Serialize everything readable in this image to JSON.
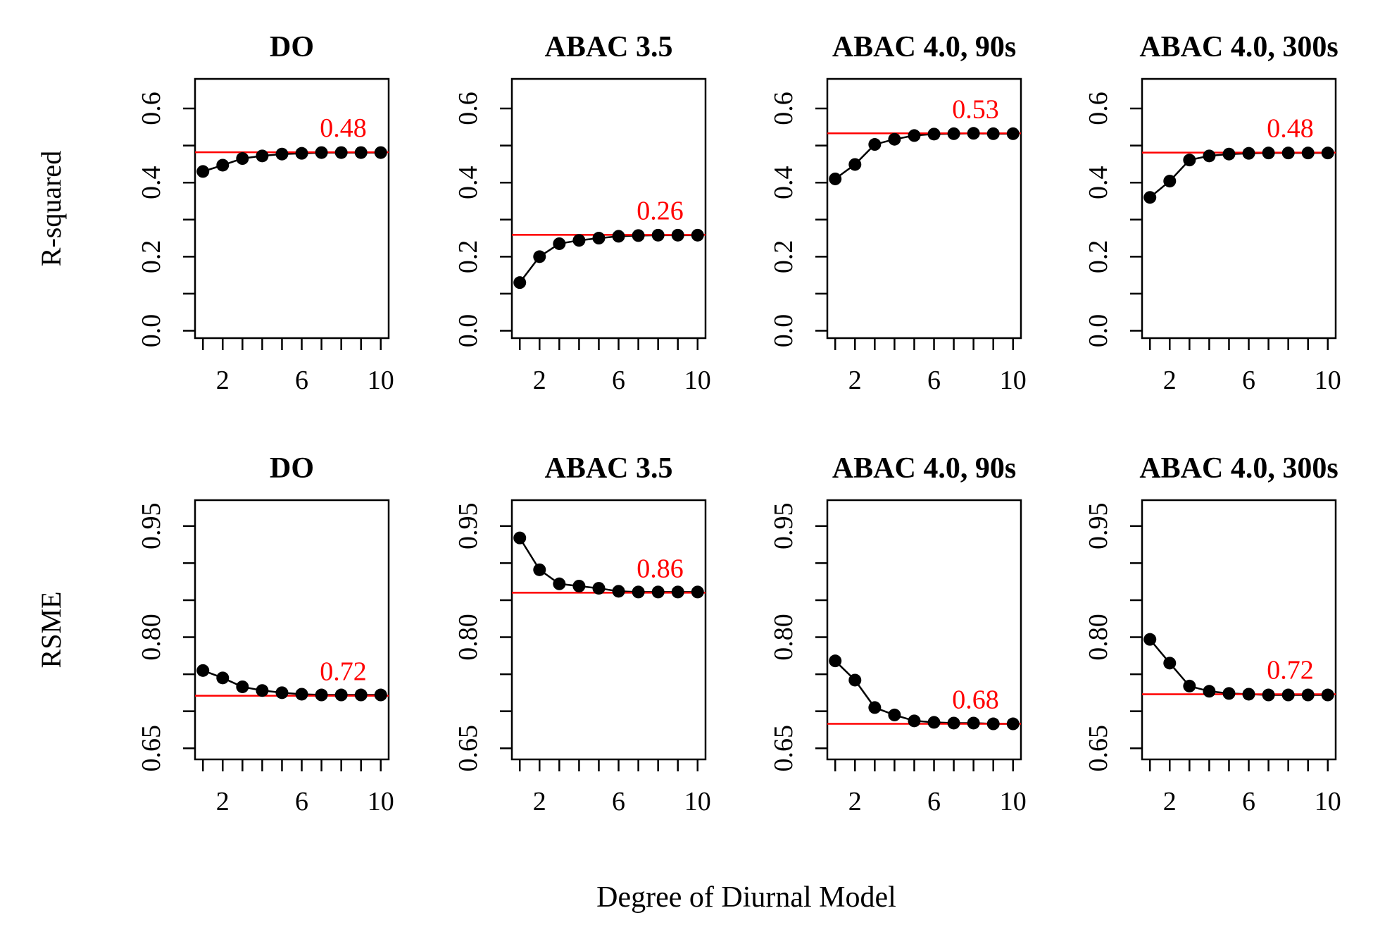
{
  "xlabel": "Degree of Diurnal Model",
  "row_labels": [
    "R-squared",
    "RSME"
  ],
  "colors": {
    "series": "#000000",
    "reference": "#ff0000"
  },
  "chart_data": [
    {
      "type": "line",
      "title": "DO",
      "ylabel": "R-squared",
      "xlim": [
        0.6,
        10.4
      ],
      "xticks": [
        2,
        6,
        10
      ],
      "ylim": [
        -0.02,
        0.68
      ],
      "yticks": [
        0.0,
        0.1,
        0.2,
        0.3,
        0.4,
        0.5,
        0.6
      ],
      "ytick_labels": [
        "0.0",
        "",
        "0.2",
        "",
        "0.4",
        "",
        "0.6"
      ],
      "x": [
        1,
        2,
        3,
        4,
        5,
        6,
        7,
        8,
        9,
        10
      ],
      "y": [
        0.43,
        0.447,
        0.465,
        0.472,
        0.477,
        0.479,
        0.481,
        0.481,
        0.481,
        0.481
      ],
      "reference": 0.482,
      "reference_label": "0.48",
      "label_pos": "above"
    },
    {
      "type": "line",
      "title": "ABAC 3.5",
      "ylabel": "R-squared",
      "xlim": [
        0.6,
        10.4
      ],
      "xticks": [
        2,
        6,
        10
      ],
      "ylim": [
        -0.02,
        0.68
      ],
      "yticks": [
        0.0,
        0.1,
        0.2,
        0.3,
        0.4,
        0.5,
        0.6
      ],
      "ytick_labels": [
        "0.0",
        "",
        "0.2",
        "",
        "0.4",
        "",
        "0.6"
      ],
      "x": [
        1,
        2,
        3,
        4,
        5,
        6,
        7,
        8,
        9,
        10
      ],
      "y": [
        0.13,
        0.2,
        0.235,
        0.244,
        0.25,
        0.255,
        0.257,
        0.258,
        0.258,
        0.258
      ],
      "reference": 0.259,
      "reference_label": "0.26",
      "label_pos": "above"
    },
    {
      "type": "line",
      "title": "ABAC 4.0, 90s",
      "ylabel": "R-squared",
      "xlim": [
        0.6,
        10.4
      ],
      "xticks": [
        2,
        6,
        10
      ],
      "ylim": [
        -0.02,
        0.68
      ],
      "yticks": [
        0.0,
        0.1,
        0.2,
        0.3,
        0.4,
        0.5,
        0.6
      ],
      "ytick_labels": [
        "0.0",
        "",
        "0.2",
        "",
        "0.4",
        "",
        "0.6"
      ],
      "x": [
        1,
        2,
        3,
        4,
        5,
        6,
        7,
        8,
        9,
        10
      ],
      "y": [
        0.41,
        0.449,
        0.503,
        0.517,
        0.527,
        0.531,
        0.532,
        0.533,
        0.532,
        0.532
      ],
      "reference": 0.533,
      "reference_label": "0.53",
      "label_pos": "above"
    },
    {
      "type": "line",
      "title": "ABAC 4.0, 300s",
      "ylabel": "R-squared",
      "xlim": [
        0.6,
        10.4
      ],
      "xticks": [
        2,
        6,
        10
      ],
      "ylim": [
        -0.02,
        0.68
      ],
      "yticks": [
        0.0,
        0.1,
        0.2,
        0.3,
        0.4,
        0.5,
        0.6
      ],
      "ytick_labels": [
        "0.0",
        "",
        "0.2",
        "",
        "0.4",
        "",
        "0.6"
      ],
      "x": [
        1,
        2,
        3,
        4,
        5,
        6,
        7,
        8,
        9,
        10
      ],
      "y": [
        0.36,
        0.404,
        0.461,
        0.472,
        0.477,
        0.479,
        0.48,
        0.48,
        0.48,
        0.48
      ],
      "reference": 0.481,
      "reference_label": "0.48",
      "label_pos": "above"
    },
    {
      "type": "line",
      "title": "DO",
      "ylabel": "RSME",
      "xlim": [
        0.6,
        10.4
      ],
      "xticks": [
        2,
        6,
        10
      ],
      "ylim": [
        0.635,
        0.985
      ],
      "yticks": [
        0.65,
        0.7,
        0.75,
        0.8,
        0.85,
        0.9,
        0.95
      ],
      "ytick_labels": [
        "0.65",
        "",
        "",
        "0.80",
        "",
        "",
        "0.95"
      ],
      "x": [
        1,
        2,
        3,
        4,
        5,
        6,
        7,
        8,
        9,
        10
      ],
      "y": [
        0.755,
        0.745,
        0.733,
        0.728,
        0.725,
        0.723,
        0.722,
        0.722,
        0.722,
        0.722
      ],
      "reference": 0.721,
      "reference_label": "0.72",
      "label_pos": "above"
    },
    {
      "type": "line",
      "title": "ABAC 3.5",
      "ylabel": "RSME",
      "xlim": [
        0.6,
        10.4
      ],
      "xticks": [
        2,
        6,
        10
      ],
      "ylim": [
        0.635,
        0.985
      ],
      "yticks": [
        0.65,
        0.7,
        0.75,
        0.8,
        0.85,
        0.9,
        0.95
      ],
      "ytick_labels": [
        "0.65",
        "",
        "",
        "0.80",
        "",
        "",
        "0.95"
      ],
      "x": [
        1,
        2,
        3,
        4,
        5,
        6,
        7,
        8,
        9,
        10
      ],
      "y": [
        0.934,
        0.891,
        0.872,
        0.869,
        0.866,
        0.862,
        0.861,
        0.861,
        0.861,
        0.861
      ],
      "reference": 0.86,
      "reference_label": "0.86",
      "label_pos": "above"
    },
    {
      "type": "line",
      "title": "ABAC 4.0, 90s",
      "ylabel": "RSME",
      "xlim": [
        0.6,
        10.4
      ],
      "xticks": [
        2,
        6,
        10
      ],
      "ylim": [
        0.635,
        0.985
      ],
      "yticks": [
        0.65,
        0.7,
        0.75,
        0.8,
        0.85,
        0.9,
        0.95
      ],
      "ytick_labels": [
        "0.65",
        "",
        "",
        "0.80",
        "",
        "",
        "0.95"
      ],
      "x": [
        1,
        2,
        3,
        4,
        5,
        6,
        7,
        8,
        9,
        10
      ],
      "y": [
        0.768,
        0.742,
        0.705,
        0.695,
        0.687,
        0.685,
        0.684,
        0.684,
        0.683,
        0.683
      ],
      "reference": 0.683,
      "reference_label": "0.68",
      "label_pos": "above"
    },
    {
      "type": "line",
      "title": "ABAC 4.0, 300s",
      "ylabel": "RSME",
      "xlim": [
        0.6,
        10.4
      ],
      "xticks": [
        2,
        6,
        10
      ],
      "ylim": [
        0.635,
        0.985
      ],
      "yticks": [
        0.65,
        0.7,
        0.75,
        0.8,
        0.85,
        0.9,
        0.95
      ],
      "ytick_labels": [
        "0.65",
        "",
        "",
        "0.80",
        "",
        "",
        "0.95"
      ],
      "x": [
        1,
        2,
        3,
        4,
        5,
        6,
        7,
        8,
        9,
        10
      ],
      "y": [
        0.797,
        0.765,
        0.734,
        0.727,
        0.724,
        0.723,
        0.722,
        0.722,
        0.722,
        0.722
      ],
      "reference": 0.723,
      "reference_label": "0.72",
      "label_pos": "above"
    }
  ]
}
